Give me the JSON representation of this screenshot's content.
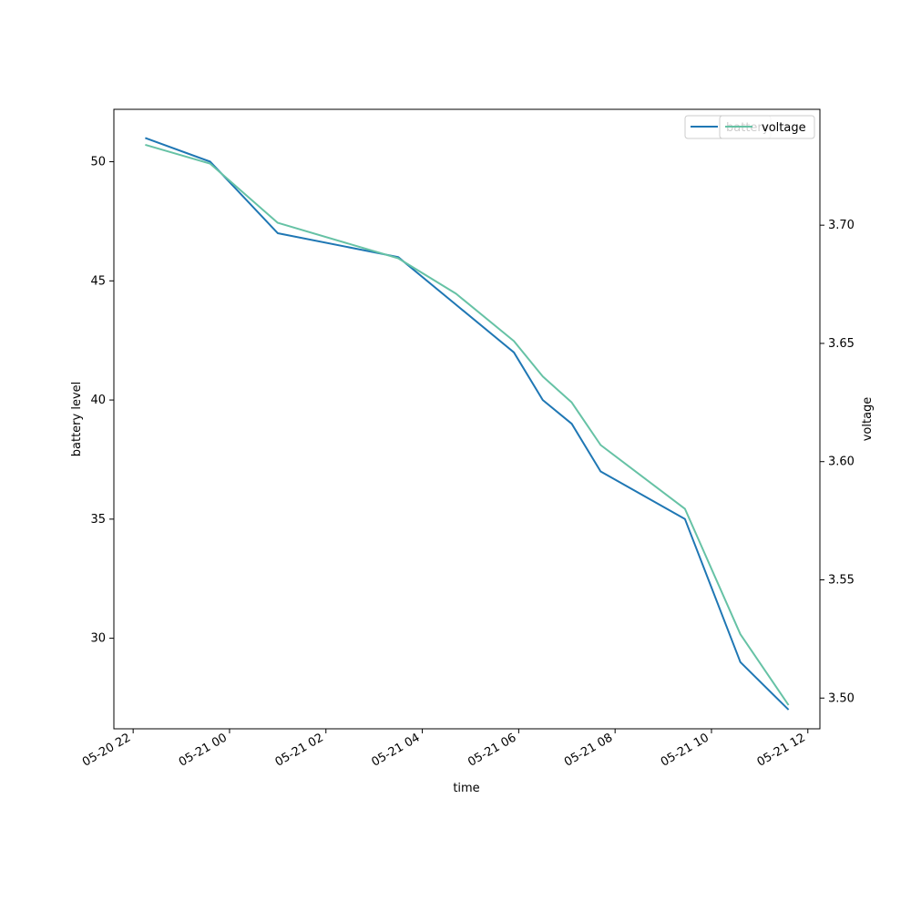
{
  "chart_data": {
    "type": "line",
    "xlabel": "time",
    "ylabel_left": "battery level",
    "ylabel_right": "voltage",
    "x_ticks": [
      "05-20 22",
      "05-21 00",
      "05-21 02",
      "05-21 04",
      "05-21 06",
      "05-21 08",
      "05-21 10",
      "05-21 12"
    ],
    "x_range_hours": [
      -2.4,
      12.25
    ],
    "ylim_left": [
      26.2,
      52.2
    ],
    "ylim_right": [
      3.487,
      3.749
    ],
    "y_ticks_left": [
      "30",
      "35",
      "40",
      "45",
      "50"
    ],
    "y_ticks_right": [
      "3.50",
      "3.55",
      "3.60",
      "3.65",
      "3.70"
    ],
    "grid": false,
    "legend_position": "top-right",
    "x_hours": [
      -1.75,
      -0.4,
      1.0,
      3.5,
      4.7,
      5.9,
      6.5,
      7.1,
      7.7,
      9.45,
      10.6,
      11.6
    ],
    "series": [
      {
        "name": "battery",
        "axis": "left",
        "color": "#1f77b4",
        "values": [
          51,
          50,
          47,
          46,
          44,
          42,
          40,
          39,
          37,
          35,
          29,
          27
        ]
      },
      {
        "name": "voltage",
        "axis": "right",
        "color": "#66c2a5",
        "values": [
          3.734,
          3.726,
          3.701,
          3.686,
          3.671,
          3.651,
          3.636,
          3.625,
          3.607,
          3.58,
          3.527,
          3.497
        ]
      }
    ]
  }
}
